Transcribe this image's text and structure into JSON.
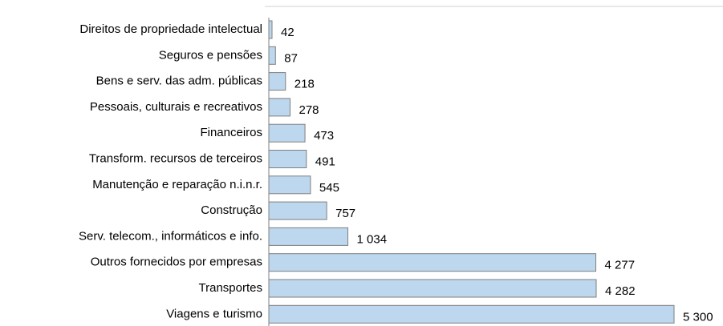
{
  "chart_data": {
    "type": "barh",
    "categories": [
      "Direitos de propriedade intelectual",
      "Seguros e pensões",
      "Bens e serv. das adm. públicas",
      "Pessoais, culturais e recreativos",
      "Financeiros",
      "Transform. recursos de terceiros",
      "Manutenção e reparação n.i.n.r.",
      "Construção",
      "Serv. telecom., informáticos e info.",
      "Outros fornecidos por empresas",
      "Transportes",
      "Viagens e turismo"
    ],
    "values": [
      42,
      87,
      218,
      278,
      473,
      491,
      545,
      757,
      1034,
      4277,
      4282,
      5300
    ],
    "value_labels": [
      "42",
      "87",
      "218",
      "278",
      "473",
      "491",
      "545",
      "757",
      "1 034",
      "4 277",
      "4 282",
      "5 300"
    ],
    "color": "#bdd7ee"
  }
}
